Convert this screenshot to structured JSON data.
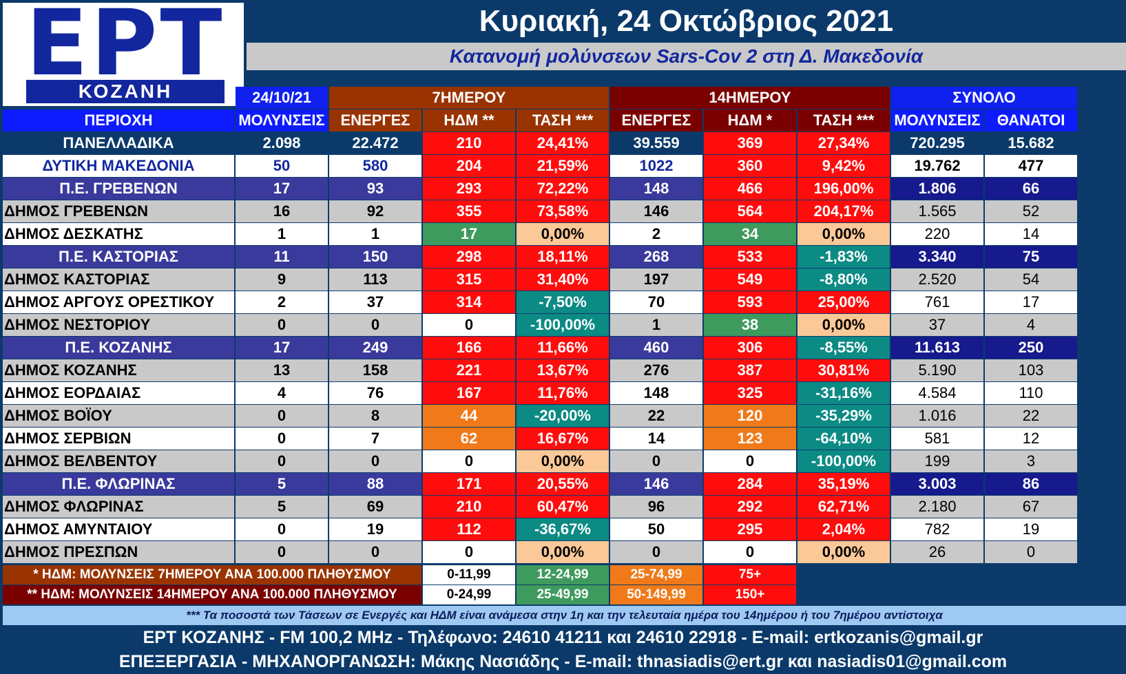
{
  "logo": {
    "big": "ΕΡΤ",
    "band": "ΚΟΖΑΝΗ"
  },
  "title": "Κυριακή, 24 Οκτώβριος 2021",
  "subtitle": "Κατανομή μολύνσεων Sars-Cov 2 στη Δ. Μακεδονία",
  "group_headers": {
    "date": "24/10/21",
    "seven_day": "7ΗΜΕΡΟΥ",
    "fourteen_day": "14ΗΜΕΡΟΥ",
    "total": "ΣΥΝΟΛΟ"
  },
  "column_headers": [
    "ΠΕΡΙΟΧΗ",
    "ΜΟΛΥΝΣΕΙΣ",
    "ΕΝΕΡΓΕΣ",
    "ΗΔΜ **",
    "ΤΑΣΗ ***",
    "ΕΝΕΡΓΕΣ",
    "ΗΔΜ *",
    "ΤΑΣΗ ***",
    "ΜΟΛΥΝΣΕΙΣ",
    "ΘΑΝΑΤΟΙ"
  ],
  "colors": {
    "red": "#ff0d0d",
    "orange": "#f07a1a",
    "green": "#3f9a5e",
    "teal": "#0c8a84",
    "peach": "#fbc898",
    "white": "#ffffff",
    "grey": "#c9c9c9",
    "header_blue": "#0f1bff",
    "dark_blue": "#0b3a6a",
    "region_purple": "#3a3a9c",
    "total_navy": "#161a8c",
    "brown": "#993300",
    "maroon": "#7a0000",
    "bright_blue": "#1020ee"
  },
  "rows": [
    {
      "type": "national",
      "name": "ΠΑΝΕΛΛΑΔΙΚΑ",
      "cases": "2.098",
      "active7": "22.472",
      "hdm7": "210",
      "hdm7_c": "red",
      "trend7": "24,41%",
      "trend7_c": "red",
      "active14": "39.559",
      "hdm14": "369",
      "hdm14_c": "red",
      "trend14": "27,34%",
      "trend14_c": "red",
      "total_cases": "720.295",
      "deaths": "15.682"
    },
    {
      "type": "macro",
      "name": "ΔΥΤΙΚΗ ΜΑΚΕΔΟΝΙΑ",
      "cases": "50",
      "active7": "580",
      "hdm7": "204",
      "hdm7_c": "red",
      "trend7": "21,59%",
      "trend7_c": "red",
      "active14": "1022",
      "hdm14": "360",
      "hdm14_c": "red",
      "trend14": "9,42%",
      "trend14_c": "red",
      "total_cases": "19.762",
      "deaths": "477"
    },
    {
      "type": "region",
      "name": "Π.Ε. ΓΡΕΒΕΝΩΝ",
      "cases": "17",
      "active7": "93",
      "hdm7": "293",
      "hdm7_c": "red",
      "trend7": "72,22%",
      "trend7_c": "red",
      "active14": "148",
      "hdm14": "466",
      "hdm14_c": "red",
      "trend14": "196,00%",
      "trend14_c": "red",
      "total_cases": "1.806",
      "deaths": "66"
    },
    {
      "type": "muni",
      "bg": "grey",
      "name": "ΔΗΜΟΣ ΓΡΕΒΕΝΩΝ",
      "cases": "16",
      "active7": "92",
      "hdm7": "355",
      "hdm7_c": "red",
      "trend7": "73,58%",
      "trend7_c": "red",
      "active14": "146",
      "hdm14": "564",
      "hdm14_c": "red",
      "trend14": "204,17%",
      "trend14_c": "red",
      "total_cases": "1.565",
      "deaths": "52"
    },
    {
      "type": "muni",
      "bg": "white",
      "name": "ΔΗΜΟΣ ΔΕΣΚΑΤΗΣ",
      "cases": "1",
      "active7": "1",
      "hdm7": "17",
      "hdm7_c": "green",
      "trend7": "0,00%",
      "trend7_c": "peach",
      "active14": "2",
      "hdm14": "34",
      "hdm14_c": "green",
      "trend14": "0,00%",
      "trend14_c": "peach",
      "total_cases": "220",
      "deaths": "14"
    },
    {
      "type": "region",
      "name": "Π.Ε. ΚΑΣΤΟΡΙΑΣ",
      "cases": "11",
      "active7": "150",
      "hdm7": "298",
      "hdm7_c": "red",
      "trend7": "18,11%",
      "trend7_c": "red",
      "active14": "268",
      "hdm14": "533",
      "hdm14_c": "red",
      "trend14": "-1,83%",
      "trend14_c": "teal",
      "total_cases": "3.340",
      "deaths": "75"
    },
    {
      "type": "muni",
      "bg": "grey",
      "name": "ΔΗΜΟΣ ΚΑΣΤΟΡΙΑΣ",
      "cases": "9",
      "active7": "113",
      "hdm7": "315",
      "hdm7_c": "red",
      "trend7": "31,40%",
      "trend7_c": "red",
      "active14": "197",
      "hdm14": "549",
      "hdm14_c": "red",
      "trend14": "-8,80%",
      "trend14_c": "teal",
      "total_cases": "2.520",
      "deaths": "54"
    },
    {
      "type": "muni",
      "bg": "white",
      "name": "ΔΗΜΟΣ ΑΡΓΟΥΣ ΟΡΕΣΤΙΚΟΥ",
      "cases": "2",
      "active7": "37",
      "hdm7": "314",
      "hdm7_c": "red",
      "trend7": "-7,50%",
      "trend7_c": "teal",
      "active14": "70",
      "hdm14": "593",
      "hdm14_c": "red",
      "trend14": "25,00%",
      "trend14_c": "red",
      "total_cases": "761",
      "deaths": "17"
    },
    {
      "type": "muni",
      "bg": "grey",
      "name": "ΔΗΜΟΣ ΝΕΣΤΟΡΙΟΥ",
      "cases": "0",
      "active7": "0",
      "hdm7": "0",
      "hdm7_c": "white",
      "trend7": "-100,00%",
      "trend7_c": "teal",
      "active14": "1",
      "hdm14": "38",
      "hdm14_c": "green",
      "trend14": "0,00%",
      "trend14_c": "peach",
      "total_cases": "37",
      "deaths": "4"
    },
    {
      "type": "region",
      "name": "Π.Ε. ΚΟΖΑΝΗΣ",
      "cases": "17",
      "active7": "249",
      "hdm7": "166",
      "hdm7_c": "red",
      "trend7": "11,66%",
      "trend7_c": "red",
      "active14": "460",
      "hdm14": "306",
      "hdm14_c": "red",
      "trend14": "-8,55%",
      "trend14_c": "teal",
      "total_cases": "11.613",
      "deaths": "250"
    },
    {
      "type": "muni",
      "bg": "grey",
      "name": "ΔΗΜΟΣ ΚΟΖΑΝΗΣ",
      "cases": "13",
      "active7": "158",
      "hdm7": "221",
      "hdm7_c": "red",
      "trend7": "13,67%",
      "trend7_c": "red",
      "active14": "276",
      "hdm14": "387",
      "hdm14_c": "red",
      "trend14": "30,81%",
      "trend14_c": "red",
      "total_cases": "5.190",
      "deaths": "103"
    },
    {
      "type": "muni",
      "bg": "white",
      "name": "ΔΗΜΟΣ ΕΟΡΔΑΙΑΣ",
      "cases": "4",
      "active7": "76",
      "hdm7": "167",
      "hdm7_c": "red",
      "trend7": "11,76%",
      "trend7_c": "red",
      "active14": "148",
      "hdm14": "325",
      "hdm14_c": "red",
      "trend14": "-31,16%",
      "trend14_c": "teal",
      "total_cases": "4.584",
      "deaths": "110"
    },
    {
      "type": "muni",
      "bg": "grey",
      "name": "ΔΗΜΟΣ ΒΟΪΟΥ",
      "cases": "0",
      "active7": "8",
      "hdm7": "44",
      "hdm7_c": "orange",
      "trend7": "-20,00%",
      "trend7_c": "teal",
      "active14": "22",
      "hdm14": "120",
      "hdm14_c": "orange",
      "trend14": "-35,29%",
      "trend14_c": "teal",
      "total_cases": "1.016",
      "deaths": "22"
    },
    {
      "type": "muni",
      "bg": "white",
      "name": "ΔΗΜΟΣ ΣΕΡΒΙΩΝ",
      "cases": "0",
      "active7": "7",
      "hdm7": "62",
      "hdm7_c": "orange",
      "trend7": "16,67%",
      "trend7_c": "red",
      "active14": "14",
      "hdm14": "123",
      "hdm14_c": "orange",
      "trend14": "-64,10%",
      "trend14_c": "teal",
      "total_cases": "581",
      "deaths": "12"
    },
    {
      "type": "muni",
      "bg": "grey",
      "name": "ΔΗΜΟΣ ΒΕΛΒΕΝΤΟΥ",
      "cases": "0",
      "active7": "0",
      "hdm7": "0",
      "hdm7_c": "white",
      "trend7": "0,00%",
      "trend7_c": "peach",
      "active14": "0",
      "hdm14": "0",
      "hdm14_c": "white",
      "trend14": "-100,00%",
      "trend14_c": "teal",
      "total_cases": "199",
      "deaths": "3"
    },
    {
      "type": "region",
      "name": "Π.Ε. ΦΛΩΡΙΝΑΣ",
      "cases": "5",
      "active7": "88",
      "hdm7": "171",
      "hdm7_c": "red",
      "trend7": "20,55%",
      "trend7_c": "red",
      "active14": "146",
      "hdm14": "284",
      "hdm14_c": "red",
      "trend14": "35,19%",
      "trend14_c": "red",
      "total_cases": "3.003",
      "deaths": "86"
    },
    {
      "type": "muni",
      "bg": "grey",
      "name": "ΔΗΜΟΣ ΦΛΩΡΙΝΑΣ",
      "cases": "5",
      "active7": "69",
      "hdm7": "210",
      "hdm7_c": "red",
      "trend7": "60,47%",
      "trend7_c": "red",
      "active14": "96",
      "hdm14": "292",
      "hdm14_c": "red",
      "trend14": "62,71%",
      "trend14_c": "red",
      "total_cases": "2.180",
      "deaths": "67"
    },
    {
      "type": "muni",
      "bg": "white",
      "name": "ΔΗΜΟΣ ΑΜΥΝΤΑΙΟΥ",
      "cases": "0",
      "active7": "19",
      "hdm7": "112",
      "hdm7_c": "red",
      "trend7": "-36,67%",
      "trend7_c": "teal",
      "active14": "50",
      "hdm14": "295",
      "hdm14_c": "red",
      "trend14": "2,04%",
      "trend14_c": "red",
      "total_cases": "782",
      "deaths": "19"
    },
    {
      "type": "muni",
      "bg": "grey",
      "name": "ΔΗΜΟΣ ΠΡΕΣΠΩΝ",
      "cases": "0",
      "active7": "0",
      "hdm7": "0",
      "hdm7_c": "white",
      "trend7": "0,00%",
      "trend7_c": "peach",
      "active14": "0",
      "hdm14": "0",
      "hdm14_c": "white",
      "trend14": "0,00%",
      "trend14_c": "peach",
      "total_cases": "26",
      "deaths": "0"
    }
  ],
  "legend": [
    {
      "label": "* ΗΔΜ: ΜΟΛΥΝΣΕΙΣ 7ΗΜΕΡΟΥ ΑΝΑ 100.000 ΠΛΗΘΥΣΜΟΥ",
      "label_bg": "brown",
      "ranges": [
        {
          "text": "0-11,99",
          "c": "white"
        },
        {
          "text": "12-24,99",
          "c": "green"
        },
        {
          "text": "25-74,99",
          "c": "orange"
        },
        {
          "text": "75+",
          "c": "red"
        }
      ]
    },
    {
      "label": "** ΗΔΜ: ΜΟΛΥΝΣΕΙΣ 14ΗΜΕΡΟΥ ΑΝΑ 100.000 ΠΛΗΘΥΣΜΟΥ",
      "label_bg": "maroon",
      "ranges": [
        {
          "text": "0-24,99",
          "c": "white"
        },
        {
          "text": "25-49,99",
          "c": "green"
        },
        {
          "text": "50-149,99",
          "c": "orange"
        },
        {
          "text": "150+",
          "c": "red"
        }
      ]
    }
  ],
  "note": "*** Τα ποσοστά των Τάσεων σε Ενεργές και ΗΔΜ είναι ανάμεσα στην 1η και την τελευταία ημέρα του 14ημέρου ή του 7ημέρου αντίστοιχα",
  "footer": {
    "line1": "ΕΡΤ ΚΟΖΑΝΗΣ - FM 100,2 MHz - Τηλέφωνο:  24610 41211 και 24610 22918 - E-mail: ertkozanis@gmail.gr",
    "line2": "ΕΠΕΞΕΡΓΑΣΙΑ  -  ΜΗΧΑΝΟΡΓΑΝΩΣΗ: Μάκης Νασιάδης  -   E-mail: thnasiadis@ert.gr και nasiadis01@gmail.com"
  }
}
